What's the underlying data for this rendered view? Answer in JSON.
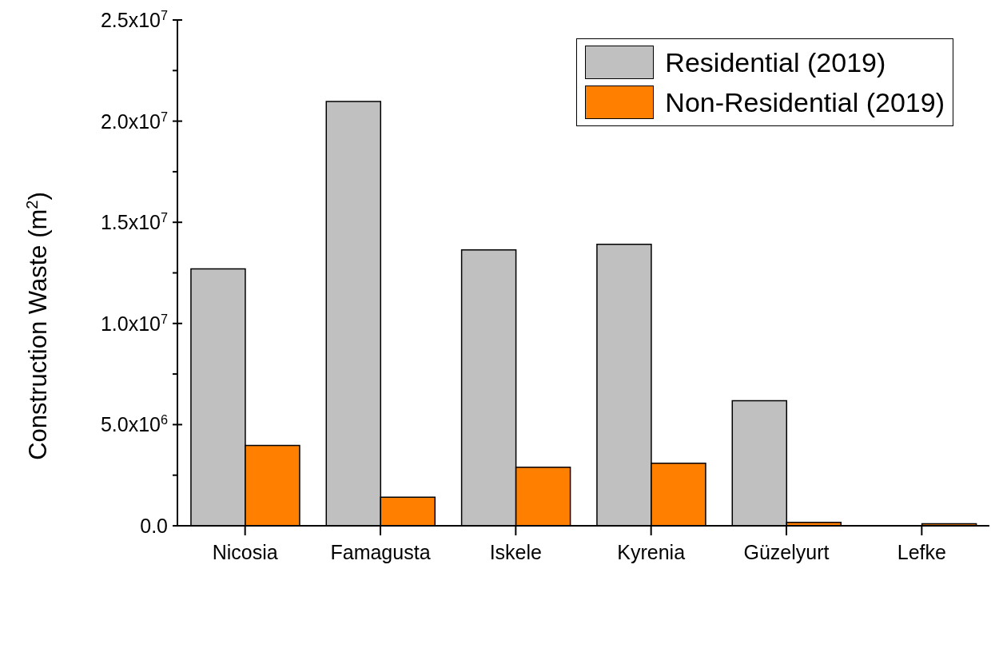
{
  "chart_data": {
    "type": "bar",
    "ylabel": "Construction Waste (m$^{2}$)",
    "categories": [
      "Nicosia",
      "Famagusta",
      "Iskele",
      "Kyrenia",
      "Güzelyurt",
      "Lefke"
    ],
    "series": [
      {
        "name": "Residential (2019)",
        "color": "#c0c0c0",
        "values": [
          12700000,
          20970000,
          13640000,
          13910000,
          6180000,
          0
        ]
      },
      {
        "name": "Non-Residential (2019)",
        "color": "#ff8000",
        "values": [
          3970000,
          1410000,
          2890000,
          3090000,
          170000,
          100000
        ]
      }
    ],
    "ylim": [
      0,
      25000000
    ],
    "yticks": [
      {
        "value": 0,
        "label": "0.0"
      },
      {
        "value": 2500000,
        "label": null
      },
      {
        "value": 5000000,
        "label": "5.0x10$^{6}$"
      },
      {
        "value": 7500000,
        "label": null
      },
      {
        "value": 10000000,
        "label": "1.0x10$^{7}$"
      },
      {
        "value": 12500000,
        "label": null
      },
      {
        "value": 15000000,
        "label": "1.5x10$^{7}$"
      },
      {
        "value": 17500000,
        "label": null
      },
      {
        "value": 20000000,
        "label": "2.0x10$^{7}$"
      },
      {
        "value": 22500000,
        "label": null
      },
      {
        "value": 25000000,
        "label": "2.5x10$^{7}$"
      }
    ],
    "grid": false,
    "legend": "top right"
  }
}
